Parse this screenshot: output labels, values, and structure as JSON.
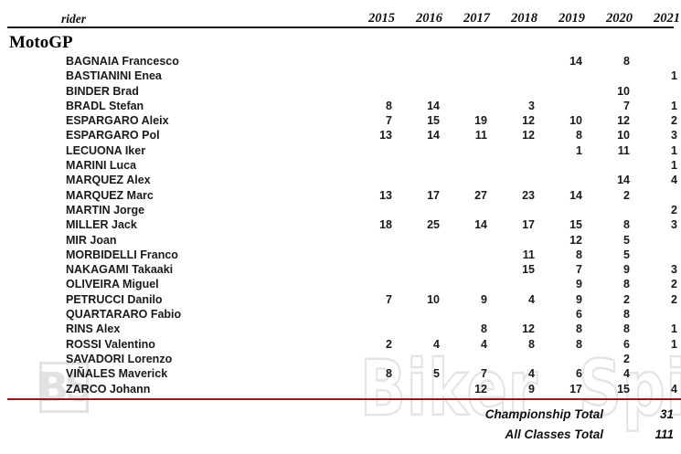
{
  "header": {
    "rider_label": "rider",
    "years": [
      "2015",
      "2016",
      "2017",
      "2018",
      "2019",
      "2020",
      "2021"
    ]
  },
  "section": {
    "title": "MotoGP"
  },
  "riders": [
    {
      "name": "BAGNAIA Francesco",
      "values": [
        "",
        "",
        "",
        "",
        "14",
        "8",
        ""
      ]
    },
    {
      "name": "BASTIANINI Enea",
      "values": [
        "",
        "",
        "",
        "",
        "",
        "",
        "1"
      ]
    },
    {
      "name": "BINDER Brad",
      "values": [
        "",
        "",
        "",
        "",
        "",
        "10",
        ""
      ]
    },
    {
      "name": "BRADL Stefan",
      "values": [
        "8",
        "14",
        "",
        "3",
        "",
        "7",
        "1"
      ]
    },
    {
      "name": "ESPARGARO Aleix",
      "values": [
        "7",
        "15",
        "19",
        "12",
        "10",
        "12",
        "2"
      ]
    },
    {
      "name": "ESPARGARO Pol",
      "values": [
        "13",
        "14",
        "11",
        "12",
        "8",
        "10",
        "3"
      ]
    },
    {
      "name": "LECUONA Iker",
      "values": [
        "",
        "",
        "",
        "",
        "1",
        "11",
        "1"
      ]
    },
    {
      "name": "MARINI Luca",
      "values": [
        "",
        "",
        "",
        "",
        "",
        "",
        "1"
      ]
    },
    {
      "name": "MARQUEZ Alex",
      "values": [
        "",
        "",
        "",
        "",
        "",
        "14",
        "4"
      ]
    },
    {
      "name": "MARQUEZ Marc",
      "values": [
        "13",
        "17",
        "27",
        "23",
        "14",
        "2",
        ""
      ]
    },
    {
      "name": "MARTIN Jorge",
      "values": [
        "",
        "",
        "",
        "",
        "",
        "",
        "2"
      ]
    },
    {
      "name": "MILLER Jack",
      "values": [
        "18",
        "25",
        "14",
        "17",
        "15",
        "8",
        "3"
      ]
    },
    {
      "name": "MIR Joan",
      "values": [
        "",
        "",
        "",
        "",
        "12",
        "5",
        ""
      ]
    },
    {
      "name": "MORBIDELLI Franco",
      "values": [
        "",
        "",
        "",
        "11",
        "8",
        "5",
        ""
      ]
    },
    {
      "name": "NAKAGAMI Takaaki",
      "values": [
        "",
        "",
        "",
        "15",
        "7",
        "9",
        "3"
      ]
    },
    {
      "name": "OLIVEIRA Miguel",
      "values": [
        "",
        "",
        "",
        "",
        "9",
        "8",
        "2"
      ]
    },
    {
      "name": "PETRUCCI Danilo",
      "values": [
        "7",
        "10",
        "9",
        "4",
        "9",
        "2",
        "2"
      ]
    },
    {
      "name": "QUARTARARO Fabio",
      "values": [
        "",
        "",
        "",
        "",
        "6",
        "8",
        ""
      ]
    },
    {
      "name": "RINS Alex",
      "values": [
        "",
        "",
        "8",
        "12",
        "8",
        "8",
        "1"
      ]
    },
    {
      "name": "ROSSI Valentino",
      "values": [
        "2",
        "4",
        "4",
        "8",
        "8",
        "6",
        "1"
      ]
    },
    {
      "name": "SAVADORI Lorenzo",
      "values": [
        "",
        "",
        "",
        "",
        "",
        "2",
        ""
      ]
    },
    {
      "name": "VIÑALES Maverick",
      "values": [
        "8",
        "5",
        "7",
        "4",
        "6",
        "4",
        ""
      ]
    },
    {
      "name": "ZARCO Johann",
      "values": [
        "",
        "",
        "12",
        "9",
        "17",
        "15",
        "4"
      ]
    }
  ],
  "totals": [
    {
      "label": "Championship Total",
      "value": "31"
    },
    {
      "label": "All Classes Total",
      "value": "111"
    }
  ],
  "watermark": {
    "text": "Biker Spirit",
    "badge": "BS"
  },
  "colors": {
    "rule_red": "#8b1c20",
    "rule_black": "#161616",
    "watermark_gray": "#e4e4e4"
  }
}
